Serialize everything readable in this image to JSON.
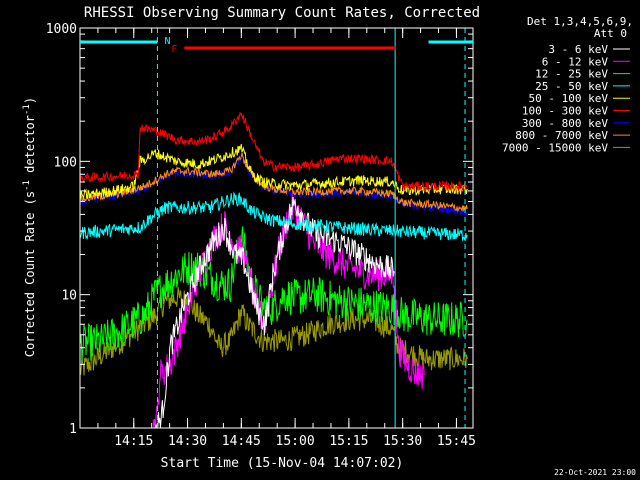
{
  "chart_data": {
    "type": "line",
    "title": "RHESSI Observing Summary Count Rates, Corrected",
    "xlabel": "Start Time (15-Nov-04 14:07:02)",
    "ylabel": "Corrected Count Rate (s⁻¹ detector⁻¹)",
    "ylabel_parts": [
      "Corrected Count Rate (s",
      "-1",
      " detector",
      "-1",
      ")"
    ],
    "yscale": "log",
    "ylim": [
      1,
      1000
    ],
    "xlim_minutes": [
      14.0,
      15.827
    ],
    "x_tick_labels": [
      {
        "t": 14.25,
        "label": "14:15"
      },
      {
        "t": 14.5,
        "label": "14:30"
      },
      {
        "t": 14.75,
        "label": "14:45"
      },
      {
        "t": 15.0,
        "label": "15:00"
      },
      {
        "t": 15.25,
        "label": "15:15"
      },
      {
        "t": 15.5,
        "label": "15:30"
      },
      {
        "t": 15.75,
        "label": "15:45"
      }
    ],
    "y_tick_labels": [
      {
        "v": 1,
        "label": "1"
      },
      {
        "v": 10,
        "label": "10"
      },
      {
        "v": 100,
        "label": "100"
      },
      {
        "v": 1000,
        "label": "1000"
      }
    ],
    "legend_header": [
      "Det 1,3,4,5,6,9,",
      "Att 0"
    ],
    "legend_position": "right",
    "date_stamp": "22-Oct-2021 23:00",
    "flags": {
      "night_marker": "N",
      "flare_marker": "F",
      "night_color": "#00ffff",
      "flare_color": "#ff0000",
      "night_periods": [
        [
          14.0,
          14.36
        ],
        [
          15.62,
          15.827
        ]
      ],
      "flare_period": [
        14.485,
        15.468
      ]
    },
    "vertical_lines": {
      "solid": [
        14.0,
        15.465
      ],
      "dashed": [
        14.36,
        15.79
      ]
    },
    "series": [
      {
        "name": "3 - 6 keV",
        "color": "#ffffff",
        "points": [
          [
            14.35,
            1
          ],
          [
            14.38,
            1.2
          ],
          [
            14.42,
            4
          ],
          [
            14.48,
            8
          ],
          [
            14.55,
            15
          ],
          [
            14.62,
            25
          ],
          [
            14.67,
            32
          ],
          [
            14.72,
            20
          ],
          [
            14.76,
            18
          ],
          [
            14.82,
            8
          ],
          [
            14.86,
            6
          ],
          [
            14.9,
            15
          ],
          [
            14.96,
            35
          ],
          [
            15.0,
            50
          ],
          [
            15.05,
            35
          ],
          [
            15.1,
            28
          ],
          [
            15.2,
            25
          ],
          [
            15.3,
            20
          ],
          [
            15.38,
            17
          ],
          [
            15.46,
            15
          ]
        ]
      },
      {
        "name": "6 - 12 keV",
        "color": "#ff00ff",
        "points": [
          [
            14.34,
            1
          ],
          [
            14.36,
            1.2
          ],
          [
            14.37,
            2.5
          ],
          [
            14.42,
            3
          ],
          [
            14.48,
            6
          ],
          [
            14.55,
            14
          ],
          [
            14.62,
            26
          ],
          [
            14.67,
            34
          ],
          [
            14.72,
            24
          ],
          [
            14.76,
            20
          ],
          [
            14.82,
            8
          ],
          [
            14.86,
            6
          ],
          [
            14.92,
            20
          ],
          [
            14.98,
            45
          ],
          [
            15.02,
            40
          ],
          [
            15.08,
            25
          ],
          [
            15.15,
            20
          ],
          [
            15.25,
            16
          ],
          [
            15.35,
            14
          ],
          [
            15.46,
            14
          ],
          [
            15.48,
            4
          ],
          [
            15.52,
            3
          ],
          [
            15.56,
            2.6
          ],
          [
            15.6,
            2.5
          ]
        ]
      },
      {
        "name": "12 - 25 keV",
        "color": "#00ff00",
        "points": [
          [
            14.0,
            4.3
          ],
          [
            14.1,
            4.5
          ],
          [
            14.2,
            5.5
          ],
          [
            14.3,
            7
          ],
          [
            14.35,
            10
          ],
          [
            14.4,
            12
          ],
          [
            14.45,
            14
          ],
          [
            14.5,
            16
          ],
          [
            14.55,
            16
          ],
          [
            14.6,
            14
          ],
          [
            14.65,
            12
          ],
          [
            14.7,
            12
          ],
          [
            14.75,
            28
          ],
          [
            14.8,
            12
          ],
          [
            14.85,
            8
          ],
          [
            14.9,
            8
          ],
          [
            14.95,
            10
          ],
          [
            15.0,
            9.5
          ],
          [
            15.1,
            10
          ],
          [
            15.2,
            9
          ],
          [
            15.3,
            8.5
          ],
          [
            15.4,
            8
          ],
          [
            15.46,
            8
          ],
          [
            15.5,
            7
          ],
          [
            15.65,
            6.5
          ],
          [
            15.8,
            6.5
          ]
        ]
      },
      {
        "name": "25 - 50 keV",
        "color": "#00ffff",
        "points": [
          [
            14.0,
            29
          ],
          [
            14.1,
            30
          ],
          [
            14.2,
            31
          ],
          [
            14.28,
            32
          ],
          [
            14.33,
            38
          ],
          [
            14.4,
            45
          ],
          [
            14.5,
            45
          ],
          [
            14.6,
            45
          ],
          [
            14.7,
            52
          ],
          [
            14.75,
            52
          ],
          [
            14.8,
            42
          ],
          [
            14.85,
            38
          ],
          [
            14.9,
            36
          ],
          [
            15.0,
            34
          ],
          [
            15.1,
            33
          ],
          [
            15.2,
            32
          ],
          [
            15.3,
            31
          ],
          [
            15.46,
            30
          ],
          [
            15.6,
            29
          ],
          [
            15.8,
            28
          ]
        ]
      },
      {
        "name": "50 - 100 keV",
        "color": "#ffff00",
        "points": [
          [
            14.0,
            55
          ],
          [
            14.1,
            58
          ],
          [
            14.2,
            62
          ],
          [
            14.25,
            65
          ],
          [
            14.28,
            100
          ],
          [
            14.35,
            115
          ],
          [
            14.45,
            100
          ],
          [
            14.55,
            95
          ],
          [
            14.62,
            102
          ],
          [
            14.7,
            115
          ],
          [
            14.75,
            125
          ],
          [
            14.8,
            80
          ],
          [
            14.85,
            70
          ],
          [
            14.9,
            68
          ],
          [
            15.0,
            66
          ],
          [
            15.1,
            68
          ],
          [
            15.2,
            70
          ],
          [
            15.3,
            72
          ],
          [
            15.45,
            70
          ],
          [
            15.5,
            60
          ],
          [
            15.65,
            62
          ],
          [
            15.8,
            62
          ]
        ]
      },
      {
        "name": "100 - 300 keV",
        "color": "#ff0000",
        "points": [
          [
            14.0,
            75
          ],
          [
            14.1,
            76
          ],
          [
            14.2,
            78
          ],
          [
            14.27,
            80
          ],
          [
            14.28,
            180
          ],
          [
            14.35,
            170
          ],
          [
            14.45,
            145
          ],
          [
            14.55,
            140
          ],
          [
            14.62,
            150
          ],
          [
            14.7,
            180
          ],
          [
            14.75,
            230
          ],
          [
            14.8,
            150
          ],
          [
            14.85,
            100
          ],
          [
            14.9,
            92
          ],
          [
            15.0,
            90
          ],
          [
            15.1,
            95
          ],
          [
            15.2,
            105
          ],
          [
            15.3,
            105
          ],
          [
            15.45,
            100
          ],
          [
            15.5,
            65
          ],
          [
            15.65,
            65
          ],
          [
            15.8,
            65
          ]
        ]
      },
      {
        "name": "300 - 800 keV",
        "color": "#0000ff",
        "points": [
          [
            14.0,
            50
          ],
          [
            14.1,
            53
          ],
          [
            14.2,
            56
          ],
          [
            14.3,
            63
          ],
          [
            14.4,
            78
          ],
          [
            14.45,
            82
          ],
          [
            14.55,
            80
          ],
          [
            14.62,
            78
          ],
          [
            14.7,
            83
          ],
          [
            14.75,
            110
          ],
          [
            14.8,
            75
          ],
          [
            14.85,
            64
          ],
          [
            14.9,
            60
          ],
          [
            15.0,
            57
          ],
          [
            15.1,
            57
          ],
          [
            15.2,
            58
          ],
          [
            15.3,
            58
          ],
          [
            15.45,
            55
          ],
          [
            15.5,
            47
          ],
          [
            15.65,
            45
          ],
          [
            15.8,
            42
          ]
        ]
      },
      {
        "name": "800 - 7000 keV",
        "color": "#ff8c00",
        "points": [
          [
            14.0,
            52
          ],
          [
            14.1,
            55
          ],
          [
            14.2,
            58
          ],
          [
            14.3,
            65
          ],
          [
            14.4,
            80
          ],
          [
            14.45,
            85
          ],
          [
            14.55,
            83
          ],
          [
            14.62,
            80
          ],
          [
            14.7,
            85
          ],
          [
            14.75,
            112
          ],
          [
            14.8,
            78
          ],
          [
            14.85,
            66
          ],
          [
            14.9,
            62
          ],
          [
            15.0,
            59
          ],
          [
            15.1,
            59
          ],
          [
            15.2,
            60
          ],
          [
            15.3,
            60
          ],
          [
            15.45,
            57
          ],
          [
            15.5,
            49
          ],
          [
            15.65,
            47
          ],
          [
            15.8,
            44
          ]
        ]
      },
      {
        "name": "7000 - 15000 keV",
        "color": "#999900",
        "points": [
          [
            14.0,
            2.7
          ],
          [
            14.1,
            3.5
          ],
          [
            14.2,
            4.5
          ],
          [
            14.3,
            6
          ],
          [
            14.35,
            7
          ],
          [
            14.4,
            9
          ],
          [
            14.45,
            9.5
          ],
          [
            14.5,
            9
          ],
          [
            14.55,
            7
          ],
          [
            14.6,
            6
          ],
          [
            14.65,
            4
          ],
          [
            14.7,
            4.5
          ],
          [
            14.75,
            7.5
          ],
          [
            14.78,
            6
          ],
          [
            14.85,
            4.5
          ],
          [
            14.95,
            4.5
          ],
          [
            15.05,
            5
          ],
          [
            15.15,
            6
          ],
          [
            15.25,
            6.5
          ],
          [
            15.35,
            6.5
          ],
          [
            15.45,
            5.5
          ],
          [
            15.48,
            4
          ],
          [
            15.6,
            3.3
          ],
          [
            15.8,
            3.3
          ]
        ]
      }
    ]
  }
}
